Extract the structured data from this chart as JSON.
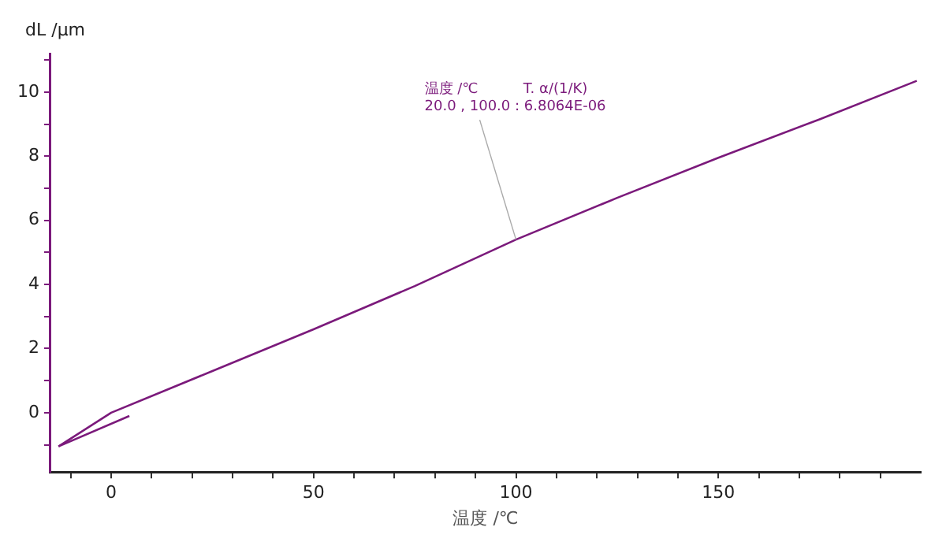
{
  "chart_data": {
    "type": "line",
    "xlabel": "温度 /℃",
    "ylabel": "dL /µm",
    "xlim": [
      -15,
      200
    ],
    "ylim": [
      -1.85,
      11.2
    ],
    "xticks": [
      {
        "value": -10,
        "label": null
      },
      0,
      {
        "value": 10,
        "label": null
      },
      {
        "value": 20,
        "label": null
      },
      {
        "value": 30,
        "label": null
      },
      {
        "value": 40,
        "label": null
      },
      50,
      {
        "value": 60,
        "label": null
      },
      {
        "value": 70,
        "label": null
      },
      {
        "value": 80,
        "label": null
      },
      {
        "value": 90,
        "label": null
      },
      100,
      {
        "value": 110,
        "label": null
      },
      {
        "value": 120,
        "label": null
      },
      {
        "value": 130,
        "label": null
      },
      {
        "value": 140,
        "label": null
      },
      150,
      {
        "value": 160,
        "label": null
      },
      {
        "value": 170,
        "label": null
      },
      {
        "value": 180,
        "label": null
      },
      {
        "value": 190,
        "label": null
      }
    ],
    "yticks": [
      {
        "value": -1,
        "label": null
      },
      0,
      {
        "value": 1,
        "label": null
      },
      2,
      {
        "value": 3,
        "label": null
      },
      4,
      {
        "value": 5,
        "label": null
      },
      6,
      {
        "value": 7,
        "label": null
      },
      8,
      {
        "value": 9,
        "label": null
      },
      10,
      {
        "value": 11,
        "label": null
      }
    ],
    "series": [
      {
        "color": "#7b1a7b",
        "x": [
          -13,
          0,
          25,
          50,
          75,
          100,
          125,
          150,
          175,
          199
        ],
        "values": [
          -1.05,
          0.0,
          1.3,
          2.6,
          3.95,
          5.4,
          6.7,
          7.95,
          9.15,
          10.35
        ]
      },
      {
        "color": "#7b1a7b",
        "x": [
          -13,
          4.5
        ],
        "values": [
          -1.05,
          -0.1
        ]
      }
    ],
    "annotations": [
      {
        "text": "温度 /℃          T. α/(1/K)\n20.0 , 100.0 : 6.8064E-06",
        "x": 100,
        "y": 5.4
      }
    ],
    "grid": false,
    "legend": false,
    "marker": "none",
    "line_style": "solid"
  }
}
